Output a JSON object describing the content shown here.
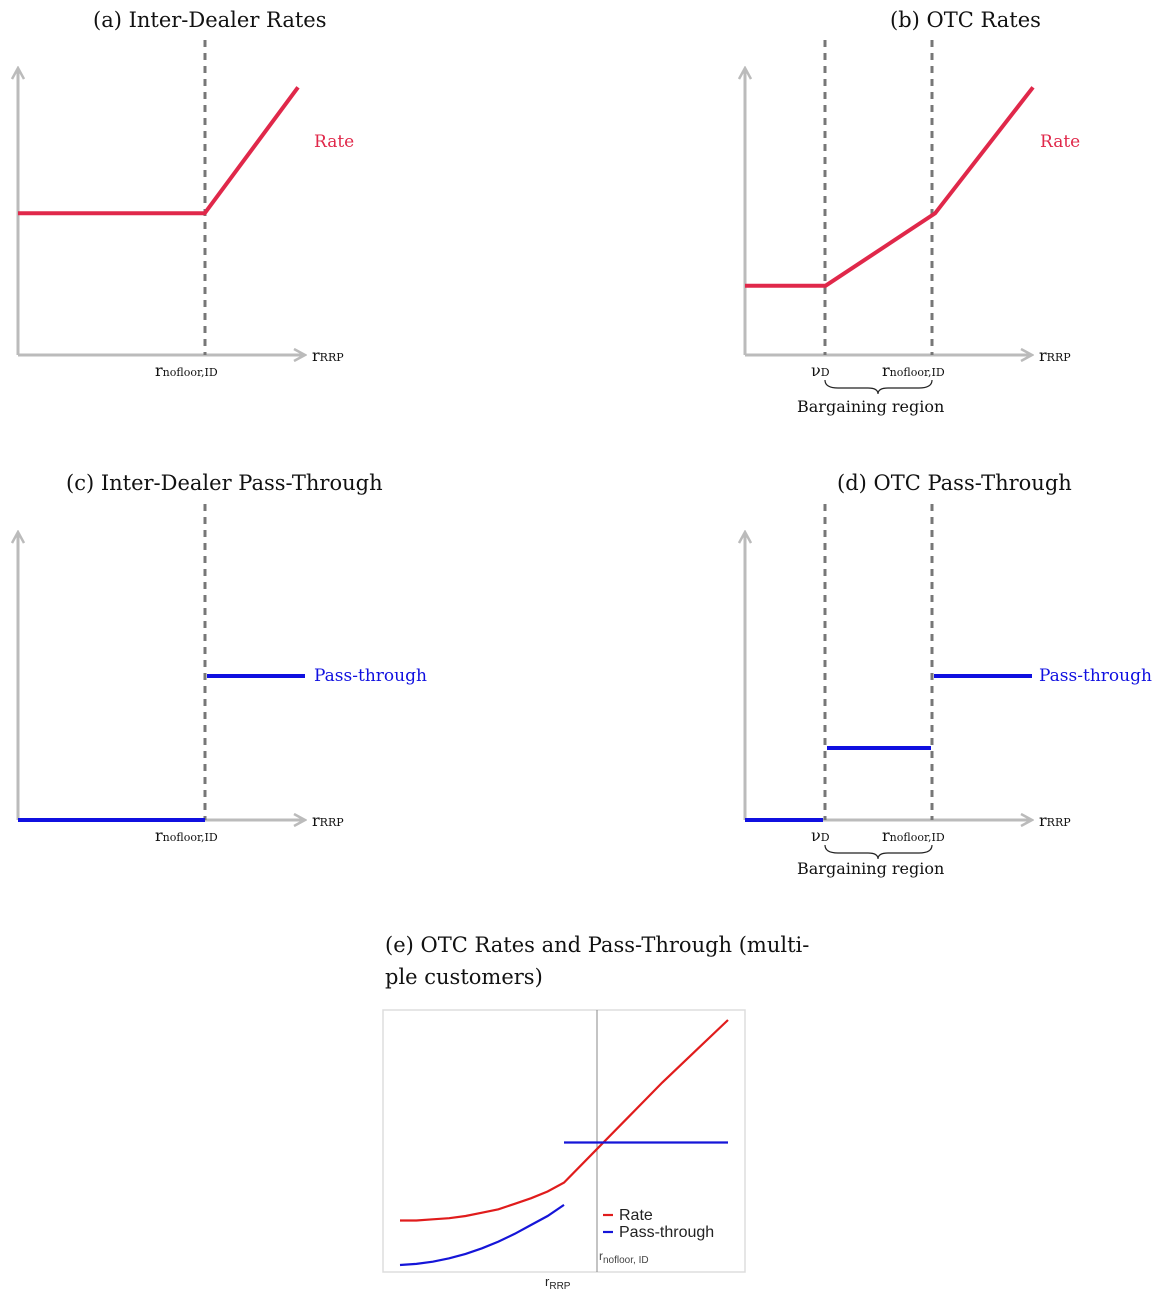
{
  "captions": {
    "a": "(a) Inter-Dealer Rates",
    "b": "(b) OTC Rates",
    "c": "(c) Inter-Dealer Pass-Through",
    "d": "(d) OTC Pass-Through",
    "e_line1": "(e) OTC Rates and Pass-Through (multi-",
    "e_line2": "ple customers)"
  },
  "labels": {
    "rate": "Rate",
    "pass_through": "Pass-through",
    "x_main": "r",
    "x_sub": "RRP",
    "nofloor_main": "r",
    "nofloor_sub": "nofloor,ID",
    "nuD_main": "ν",
    "nuD_sub": "D",
    "bargaining": "Bargaining region"
  },
  "panel_e": {
    "legend_rate": "Rate",
    "legend_pass": "Pass-through",
    "vline_main": "r",
    "vline_sub": "nofloor, ID",
    "x_main": "r",
    "x_sub": "RRP"
  },
  "chart_data": [
    {
      "type": "line",
      "title": "(a) Inter-Dealer Rates",
      "xlabel": "rRRP",
      "x": [
        0,
        1,
        1.5
      ],
      "series": [
        {
          "name": "Rate",
          "values": [
            0.45,
            0.45,
            0.85
          ]
        }
      ],
      "xlim": [
        0,
        1.5
      ],
      "ylim": [
        0,
        1
      ],
      "vlines": [
        {
          "x": 1,
          "label": "rnofloor,ID"
        }
      ],
      "grid": false
    },
    {
      "type": "line",
      "title": "(b) OTC Rates",
      "xlabel": "rRRP",
      "x": [
        0,
        0.28,
        0.66,
        1.0
      ],
      "series": [
        {
          "name": "Rate",
          "values": [
            0.22,
            0.22,
            0.45,
            0.85
          ]
        }
      ],
      "xlim": [
        0,
        1.0
      ],
      "ylim": [
        0,
        1
      ],
      "vlines": [
        {
          "x": 0.28,
          "label": "νD"
        },
        {
          "x": 0.66,
          "label": "rnofloor,ID"
        }
      ],
      "annotations": [
        {
          "text": "Bargaining region",
          "from": 0.28,
          "to": 0.66
        }
      ],
      "grid": false
    },
    {
      "type": "line",
      "title": "(c) Inter-Dealer Pass-Through",
      "xlabel": "rRRP",
      "segments": [
        {
          "x": [
            0,
            1
          ],
          "y": [
            0,
            0
          ]
        },
        {
          "x": [
            1,
            1.5
          ],
          "y": [
            0.5,
            0.5
          ]
        }
      ],
      "series": [
        {
          "name": "Pass-through",
          "values": [
            0,
            0,
            0.5,
            0.5
          ]
        }
      ],
      "x": [
        0,
        1,
        1,
        1.5
      ],
      "xlim": [
        0,
        1.5
      ],
      "ylim": [
        0,
        1
      ],
      "vlines": [
        {
          "x": 1,
          "label": "rnofloor,ID"
        }
      ],
      "grid": false
    },
    {
      "type": "line",
      "title": "(d) OTC Pass-Through",
      "xlabel": "rRRP",
      "segments": [
        {
          "x": [
            0,
            0.28
          ],
          "y": [
            0,
            0
          ]
        },
        {
          "x": [
            0.28,
            0.66
          ],
          "y": [
            0.25,
            0.25
          ]
        },
        {
          "x": [
            0.66,
            1.0
          ],
          "y": [
            0.5,
            0.5
          ]
        }
      ],
      "series": [
        {
          "name": "Pass-through",
          "values": [
            0,
            0,
            0.25,
            0.25,
            0.5,
            0.5
          ]
        }
      ],
      "x": [
        0,
        0.28,
        0.28,
        0.66,
        0.66,
        1.0
      ],
      "xlim": [
        0,
        1.0
      ],
      "ylim": [
        0,
        1
      ],
      "vlines": [
        {
          "x": 0.28,
          "label": "νD"
        },
        {
          "x": 0.66,
          "label": "rnofloor,ID"
        }
      ],
      "annotations": [
        {
          "text": "Bargaining region",
          "from": 0.28,
          "to": 0.66
        }
      ],
      "grid": false
    },
    {
      "type": "line",
      "title": "(e) OTC Rates and Pass-Through (multiple customers)",
      "xlabel": "rRRP",
      "x": [
        0,
        0.1,
        0.2,
        0.3,
        0.4,
        0.5,
        0.6,
        0.7,
        0.8,
        0.9,
        1.0,
        1.2,
        1.4,
        1.6,
        1.8,
        2.0
      ],
      "series": [
        {
          "name": "Rate",
          "values": [
            0.2,
            0.2,
            0.205,
            0.21,
            0.22,
            0.235,
            0.25,
            0.275,
            0.3,
            0.33,
            0.37,
            0.52,
            0.67,
            0.82,
            0.96,
            1.1
          ]
        },
        {
          "name": "Pass-through",
          "values": [
            0.0,
            0.005,
            0.015,
            0.03,
            0.05,
            0.075,
            0.105,
            0.14,
            0.18,
            0.22,
            0.27,
            0.55,
            0.55,
            0.55,
            0.55,
            0.55
          ]
        }
      ],
      "vlines": [
        {
          "x": 1.0,
          "label": "rnofloor, ID"
        }
      ],
      "legend": "center-right",
      "grid": false
    }
  ]
}
